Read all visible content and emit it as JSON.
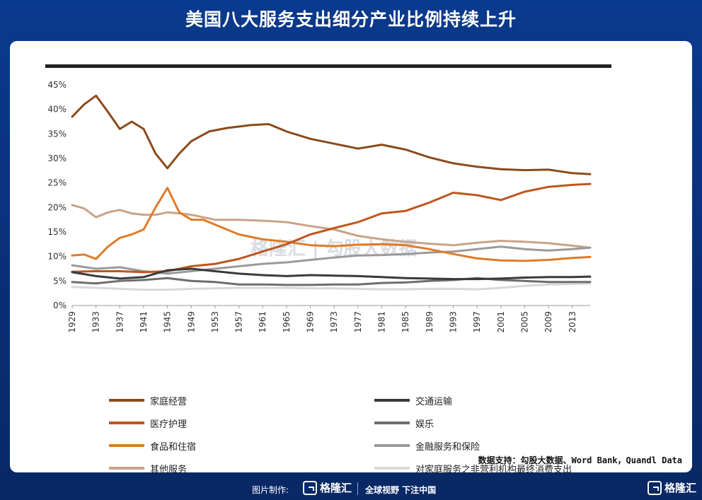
{
  "title": "美国八大服务支出细分产业比例持续上升",
  "footer": {
    "made_by": "图片制作:",
    "brand": "格隆汇",
    "slogan": "全球视野 下注中国",
    "brand_right": "格隆汇"
  },
  "source_note": "数据支持：勾股大数据、Word Bank，Quandl Data",
  "watermark": "格隆汇 | 勾股大数据",
  "chart_data": {
    "type": "line",
    "title": "",
    "xlabel": "",
    "ylabel": "",
    "x_ticks": [
      "1929",
      "1933",
      "1937",
      "1941",
      "1945",
      "1949",
      "1953",
      "1957",
      "1961",
      "1965",
      "1969",
      "1973",
      "1977",
      "1981",
      "1985",
      "1989",
      "1993",
      "1997",
      "2001",
      "2005",
      "2009",
      "2013"
    ],
    "y_ticks": [
      "0%",
      "5%",
      "10%",
      "15%",
      "20%",
      "25%",
      "30%",
      "35%",
      "40%",
      "45%"
    ],
    "xlim": [
      1929,
      2016
    ],
    "ylim": [
      0,
      45
    ],
    "legend_position": "bottom",
    "series": [
      {
        "name": "家庭经营",
        "color": "#8B4A1C",
        "x": [
          1929,
          1931,
          1933,
          1935,
          1937,
          1939,
          1941,
          1943,
          1945,
          1947,
          1949,
          1952,
          1955,
          1959,
          1962,
          1965,
          1969,
          1973,
          1977,
          1981,
          1985,
          1989,
          1993,
          1997,
          2001,
          2005,
          2009,
          2013,
          2016
        ],
        "y": [
          38.5,
          41,
          42.8,
          39.5,
          36,
          37.5,
          36,
          31,
          28,
          31,
          33.5,
          35.5,
          36.2,
          36.8,
          37,
          35.5,
          34,
          33,
          32,
          32.8,
          31.8,
          30.2,
          29,
          28.3,
          27.8,
          27.6,
          27.7,
          27,
          26.8
        ]
      },
      {
        "name": "交通运输",
        "color": "#3A3A3A",
        "x": [
          1929,
          1933,
          1937,
          1941,
          1945,
          1949,
          1953,
          1957,
          1961,
          1965,
          1969,
          1973,
          1977,
          1981,
          1985,
          1989,
          1993,
          1997,
          2001,
          2005,
          2009,
          2013,
          2016
        ],
        "y": [
          6.8,
          6,
          5.5,
          5.8,
          7.2,
          7.5,
          7,
          6.5,
          6.2,
          6,
          6.2,
          6.1,
          6,
          5.8,
          5.6,
          5.5,
          5.4,
          5.4,
          5.5,
          5.7,
          5.8,
          5.8,
          5.9
        ]
      },
      {
        "name": "医疗护理",
        "color": "#C0561C",
        "x": [
          1929,
          1933,
          1937,
          1941,
          1945,
          1949,
          1953,
          1957,
          1961,
          1965,
          1969,
          1973,
          1977,
          1981,
          1985,
          1989,
          1993,
          1997,
          2001,
          2005,
          2009,
          2013,
          2016
        ],
        "y": [
          6.9,
          7,
          7,
          6.8,
          7,
          8,
          8.5,
          9.5,
          11,
          12.5,
          14.5,
          15.8,
          17,
          18.8,
          19.3,
          21,
          23,
          22.5,
          21.5,
          23.2,
          24.2,
          24.6,
          24.8
        ]
      },
      {
        "name": "娱乐",
        "color": "#6E6E6E",
        "x": [
          1929,
          1933,
          1937,
          1941,
          1945,
          1949,
          1953,
          1957,
          1961,
          1965,
          1969,
          1973,
          1977,
          1981,
          1985,
          1989,
          1993,
          1997,
          2001,
          2005,
          2009,
          2013,
          2016
        ],
        "y": [
          4.8,
          4.5,
          5,
          5.2,
          5.6,
          5,
          4.8,
          4.3,
          4.3,
          4.2,
          4.2,
          4.3,
          4.3,
          4.6,
          4.7,
          5,
          5.2,
          5.6,
          5.2,
          5,
          4.8,
          4.8,
          4.8
        ]
      },
      {
        "name": "食品和住宿",
        "color": "#E07B28",
        "x": [
          1929,
          1931,
          1933,
          1935,
          1937,
          1939,
          1941,
          1943,
          1945,
          1947,
          1949,
          1951,
          1953,
          1957,
          1961,
          1965,
          1969,
          1973,
          1977,
          1981,
          1985,
          1989,
          1993,
          1997,
          2001,
          2005,
          2009,
          2013,
          2016
        ],
        "y": [
          10.2,
          10.4,
          9.5,
          12,
          13.8,
          14.5,
          15.5,
          20,
          24,
          19,
          17.5,
          17.5,
          16.5,
          14.5,
          13.5,
          13,
          12.3,
          12.1,
          12.4,
          12.5,
          12.3,
          11.5,
          10.5,
          9.6,
          9.2,
          9.1,
          9.3,
          9.7,
          9.9
        ]
      },
      {
        "name": "金融服务和保险",
        "color": "#9A9A9A",
        "x": [
          1929,
          1933,
          1937,
          1941,
          1945,
          1949,
          1953,
          1957,
          1961,
          1965,
          1969,
          1973,
          1977,
          1981,
          1985,
          1989,
          1993,
          1997,
          2001,
          2005,
          2009,
          2013,
          2016
        ],
        "y": [
          8.2,
          7.5,
          7.8,
          7,
          6.5,
          7,
          7.5,
          8,
          8.5,
          8.8,
          9.3,
          9.8,
          10.2,
          10.3,
          10.5,
          10.8,
          11,
          11.5,
          12,
          11.5,
          11.2,
          11.5,
          11.8
        ]
      },
      {
        "name": "其他服务",
        "color": "#C9A387",
        "x": [
          1929,
          1931,
          1933,
          1935,
          1937,
          1939,
          1941,
          1943,
          1945,
          1947,
          1949,
          1953,
          1957,
          1961,
          1965,
          1969,
          1973,
          1977,
          1981,
          1985,
          1989,
          1993,
          1997,
          2001,
          2005,
          2009,
          2013,
          2016
        ],
        "y": [
          20.5,
          19.8,
          18,
          19,
          19.5,
          18.8,
          18.5,
          18.5,
          19,
          18.8,
          18.5,
          17.5,
          17.5,
          17.3,
          17,
          16.2,
          15.5,
          14.2,
          13.5,
          13,
          12.6,
          12.3,
          12.8,
          13.2,
          13,
          12.7,
          12.2,
          11.8
        ]
      },
      {
        "name": "对家庭服务之非营利机构最终消费支出",
        "color": "#D8D8D8",
        "x": [
          1929,
          1933,
          1937,
          1941,
          1945,
          1949,
          1953,
          1957,
          1961,
          1965,
          1969,
          1973,
          1977,
          1981,
          1985,
          1989,
          1993,
          1997,
          2001,
          2005,
          2009,
          2013,
          2016
        ],
        "y": [
          3.8,
          3.6,
          3.4,
          3.2,
          3.2,
          3.4,
          3.5,
          3.6,
          3.6,
          3.6,
          3.5,
          3.5,
          3.4,
          3.3,
          3.3,
          3.4,
          3.4,
          3.3,
          3.6,
          4,
          4.3,
          4.4,
          4.5
        ]
      }
    ]
  }
}
